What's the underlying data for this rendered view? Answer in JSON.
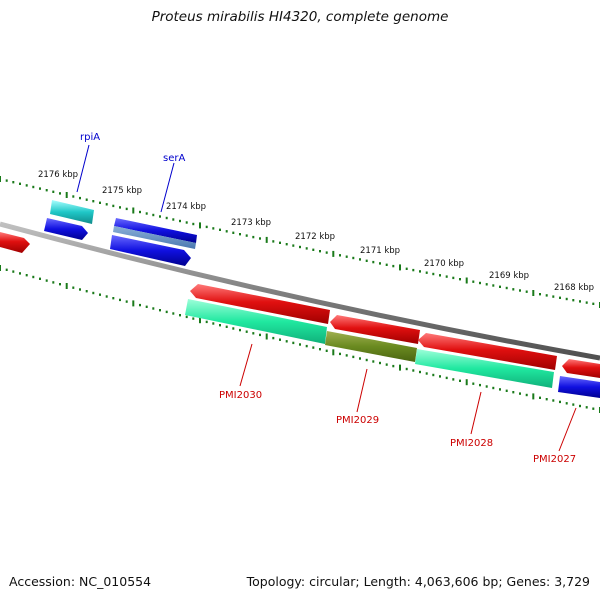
{
  "title": "Proteus mirabilis HI4320, complete genome",
  "footer": {
    "accession": "Accession: NC_010554",
    "info": "Topology: circular; Length: 4,063,606 bp; Genes: 3,729"
  },
  "colors": {
    "backbone": "#808080",
    "ticks": "#1a7a1a",
    "forward_cds": "#e01010",
    "forward_gene": "#20e8a0",
    "reverse_cds": "#1010e0",
    "reverse_gene": "#20c8c8",
    "overlap": "#6a8a20",
    "gene_label_forward": "#cc0000",
    "gene_label_reverse": "#0000cc"
  },
  "scale": {
    "unit": "kbp",
    "labels": [
      "2176 kbp",
      "2175 kbp",
      "2174 kbp",
      "2173 kbp",
      "2172 kbp",
      "2171 kbp",
      "2170 kbp",
      "2169 kbp",
      "2168 kbp"
    ]
  },
  "genes": {
    "reverse_strand": [
      {
        "name": "rpiA"
      },
      {
        "name": "serA"
      }
    ],
    "forward_strand": [
      {
        "name": "PMI2030"
      },
      {
        "name": "PMI2029"
      },
      {
        "name": "PMI2028"
      },
      {
        "name": "PMI2027"
      }
    ]
  }
}
